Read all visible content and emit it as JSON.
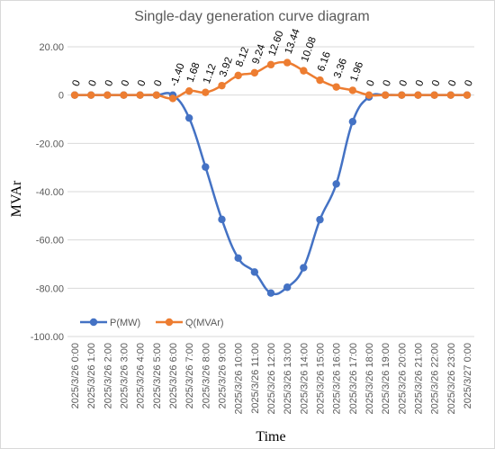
{
  "chart_data": {
    "type": "line",
    "title": "Single-day generation curve diagram",
    "xlabel": "Time",
    "ylabel": "MVAr",
    "ylim": [
      -100,
      20
    ],
    "yticks": [
      "20.00",
      "0",
      "-20.00",
      "-40.00",
      "-60.00",
      "-80.00",
      "-100.00"
    ],
    "grid": true,
    "legend_position": "bottom-left",
    "categories": [
      "2025/3/26 0:00",
      "2025/3/26 1:00",
      "2025/3/26 2:00",
      "2025/3/26 3:00",
      "2025/3/26 4:00",
      "2025/3/26 5:00",
      "2025/3/26 6:00",
      "2025/3/26 7:00",
      "2025/3/26 8:00",
      "2025/3/26 9:00",
      "2025/3/26 10:00",
      "2025/3/26 11:00",
      "2025/3/26 12:00",
      "2025/3/26 13:00",
      "2025/3/26 14:00",
      "2025/3/26 15:00",
      "2025/3/26 16:00",
      "2025/3/26 17:00",
      "2025/3/26 18:00",
      "2025/3/26 19:00",
      "2025/3/26 20:00",
      "2025/3/26 21:00",
      "2025/3/26 22:00",
      "2025/3/26 23:00",
      "2025/3/27 0:00"
    ],
    "series": [
      {
        "name": "P(MW)",
        "color": "#4472c4",
        "values": [
          0,
          0,
          0,
          0,
          0,
          0,
          0,
          -9.5,
          -29.8,
          -51.5,
          -67.5,
          -73.3,
          -82.0,
          -79.6,
          -71.5,
          -51.6,
          -36.8,
          -11.0,
          -0.8,
          0,
          0,
          0,
          0,
          0,
          0
        ]
      },
      {
        "name": "Q(MVAr)",
        "color": "#ed7d31",
        "values": [
          0,
          0,
          0,
          0,
          0,
          0,
          -1.4,
          1.68,
          1.12,
          3.92,
          8.12,
          9.24,
          12.6,
          13.44,
          10.08,
          6.16,
          3.36,
          1.96,
          0,
          0,
          0,
          0,
          0,
          0,
          0
        ],
        "labels": [
          "0",
          "0",
          "0",
          "0",
          "0",
          "0",
          "-1.40",
          "1.68",
          "1.12",
          "3.92",
          "8.12",
          "9.24",
          "12.60",
          "13.44",
          "10.08",
          "6.16",
          "3.36",
          "1.96",
          "0",
          "0",
          "0",
          "0",
          "0",
          "0",
          "0"
        ]
      }
    ]
  }
}
